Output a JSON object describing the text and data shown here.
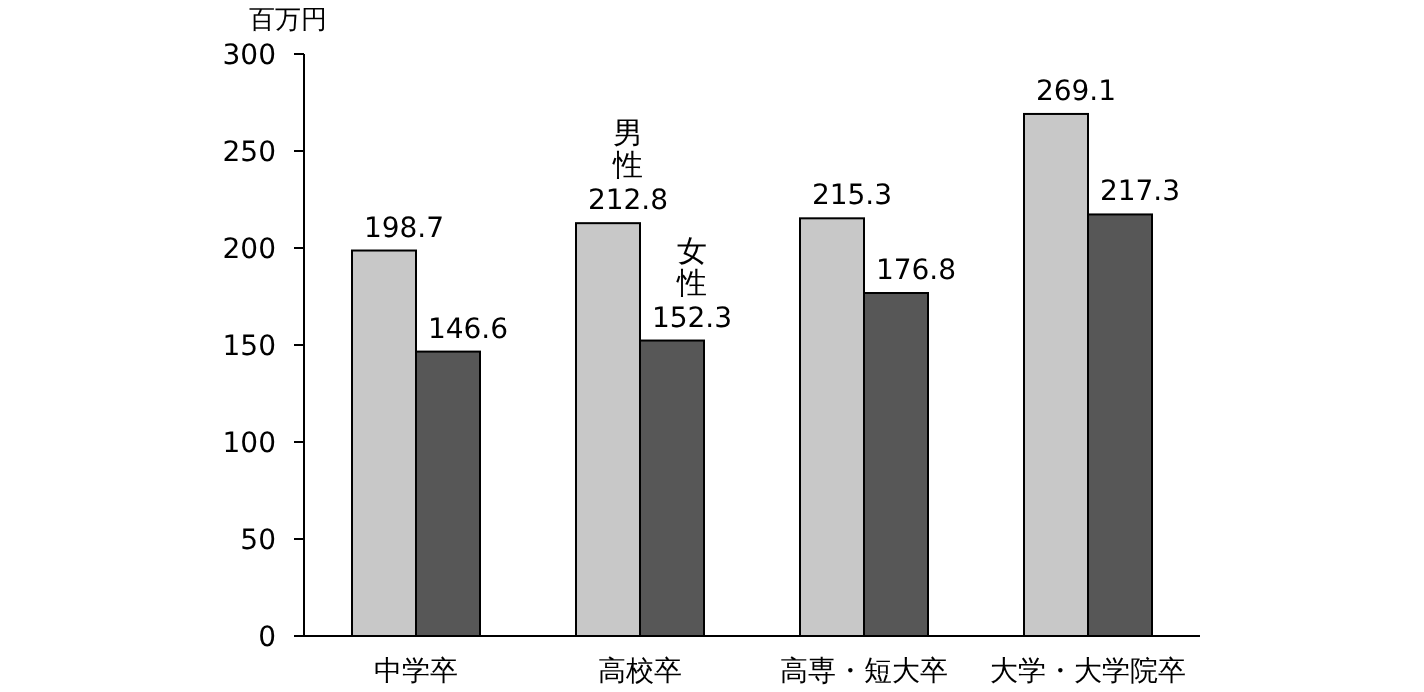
{
  "chart_data": {
    "type": "bar",
    "ylabel": "百万円",
    "categories": [
      "中学卒",
      "高校卒",
      "高専・短大卒",
      "大学・大学院卒"
    ],
    "series": [
      {
        "name": "男性",
        "color": "#c8c8c8",
        "values": [
          198.7,
          212.8,
          215.3,
          269.1
        ]
      },
      {
        "name": "女性",
        "color": "#575757",
        "values": [
          146.6,
          152.3,
          176.8,
          217.3
        ]
      }
    ],
    "ylim": [
      0,
      300
    ],
    "yticks": [
      0,
      50,
      100,
      150,
      200,
      250,
      300
    ],
    "data_labels": true,
    "grid": false
  }
}
